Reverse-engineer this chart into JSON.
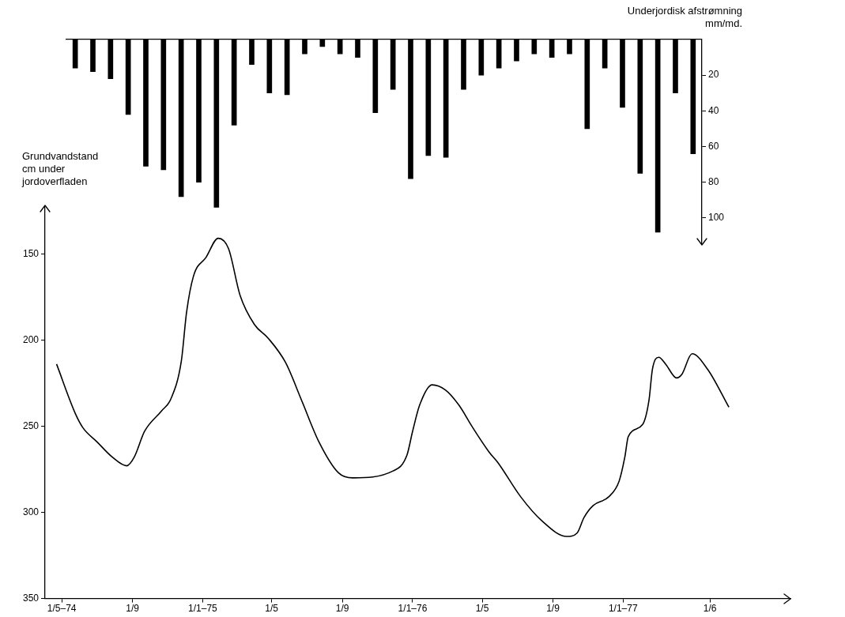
{
  "chart_data": [
    {
      "type": "bar",
      "ylabel": "Underjordisk afstrømning\nmm/md.",
      "categories": [
        null,
        null,
        null,
        null,
        null,
        null,
        null,
        null,
        null,
        null,
        null,
        null,
        null,
        null,
        null,
        null,
        null,
        null,
        null,
        null,
        null,
        null,
        null,
        null,
        null,
        null,
        null,
        null,
        null,
        null,
        null,
        null,
        null,
        null,
        null,
        null
      ],
      "values": [
        16,
        18,
        22,
        42,
        71,
        73,
        88,
        80,
        94,
        48,
        14,
        30,
        31,
        8,
        4,
        8,
        10,
        41,
        28,
        78,
        65,
        66,
        28,
        20,
        16,
        12,
        8,
        10,
        8,
        50,
        16,
        38,
        75,
        108,
        30,
        64
      ],
      "color": "#000000",
      "ylim": [
        115,
        0
      ],
      "yticks": [
        20,
        40,
        60,
        80,
        100
      ],
      "tick_labels": "y",
      "grid": false,
      "legend": false
    },
    {
      "type": "line",
      "ylabel": "Grundvandstand\ncm under\njordoverfladen",
      "x": [
        "1974-04-22",
        "1974-05-25",
        "1974-06-07",
        "1974-07-01",
        "1974-07-28",
        "1974-08-22",
        "1974-09-04",
        "1974-09-22",
        "1974-10-22",
        "1974-11-07",
        "1974-11-25",
        "1974-12-04",
        "1974-12-16",
        "1975-01-07",
        "1975-01-28",
        "1975-02-15",
        "1975-03-07",
        "1975-04-01",
        "1975-04-25",
        "1975-05-25",
        "1975-06-22",
        "1975-07-22",
        "1975-08-25",
        "1975-09-19",
        "1975-11-28",
        "1975-12-22",
        "1976-01-01",
        "1976-01-13",
        "1976-02-04",
        "1976-02-27",
        "1976-03-22",
        "1976-04-13",
        "1976-05-13",
        "1976-05-28",
        "1976-07-07",
        "1976-08-13",
        "1976-09-25",
        "1976-10-13",
        "1976-10-25",
        "1976-11-10",
        "1976-12-07",
        "1976-12-25",
        "1977-01-04",
        "1977-01-10",
        "1977-02-04",
        "1977-02-15",
        "1977-02-21",
        "1977-03-04",
        "1977-03-16",
        "1977-04-04",
        "1977-04-13",
        "1977-05-01",
        "1977-05-28",
        "1977-07-04"
      ],
      "values": [
        214,
        243,
        251,
        259,
        268,
        273,
        268,
        253,
        241,
        234,
        212,
        184,
        163,
        152,
        141,
        147,
        174,
        191,
        199,
        213,
        235,
        259,
        277,
        280,
        276,
        267,
        253,
        238,
        226,
        229,
        238,
        250,
        265,
        271,
        291,
        305,
        314,
        312,
        303,
        296,
        291,
        282,
        268,
        256,
        249,
        235,
        217,
        210,
        214,
        222,
        220,
        208,
        217,
        239
      ],
      "color": "#000000",
      "marker": "none",
      "line_style": "solid",
      "xlim": [
        "1974-04-02",
        "1977-10-19"
      ],
      "xticks": [
        {
          "value": "1974-05-01",
          "label": "1/5–74"
        },
        {
          "value": "1974-09-01",
          "label": "1/9"
        },
        {
          "value": "1975-01-01",
          "label": "1/1–75"
        },
        {
          "value": "1975-05-01",
          "label": "1/5"
        },
        {
          "value": "1975-09-01",
          "label": "1/9"
        },
        {
          "value": "1976-01-01",
          "label": "1/1–76"
        },
        {
          "value": "1976-05-01",
          "label": "1/5"
        },
        {
          "value": "1976-09-01",
          "label": "1/9"
        },
        {
          "value": "1977-01-01",
          "label": "1/1–77"
        },
        {
          "value": "1977-06-01",
          "label": "1/6"
        }
      ],
      "ylim": [
        350,
        122
      ],
      "yticks": [
        150,
        200,
        250,
        300,
        350
      ],
      "grid": false,
      "legend": false
    }
  ]
}
